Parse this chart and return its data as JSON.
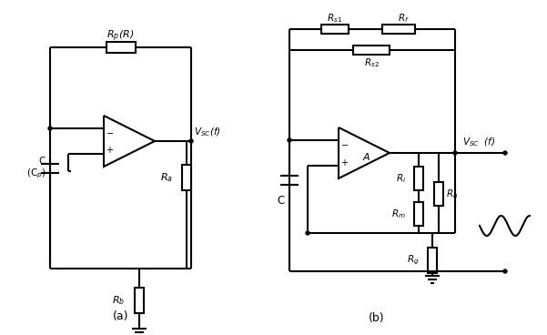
{
  "background": "#ffffff",
  "line_color": "#000000",
  "line_width": 1.5,
  "fig_width": 6.01,
  "fig_height": 3.68,
  "label_a": "(a)",
  "label_b": "(b)",
  "label_Rp_R": "R$_p$(R)",
  "label_Ra": "R$_a$",
  "label_Rb": "R$_b$",
  "label_C_Cp": "C\n(C$_p$)",
  "label_Vsc_f_a": "$V_{SC}$(f)",
  "label_Rs1": "R$_{s1}$",
  "label_Rs2": "R$_{s2}$",
  "label_Rf": "R$_f$",
  "label_Ri": "R$_i$",
  "label_Rn": "R$_n$",
  "label_Rm": "R$_m$",
  "label_Rg": "R$_g$",
  "label_C_b": "C",
  "label_A": "A",
  "label_Vsc_f_b": "$V_{SC}$  (f)"
}
